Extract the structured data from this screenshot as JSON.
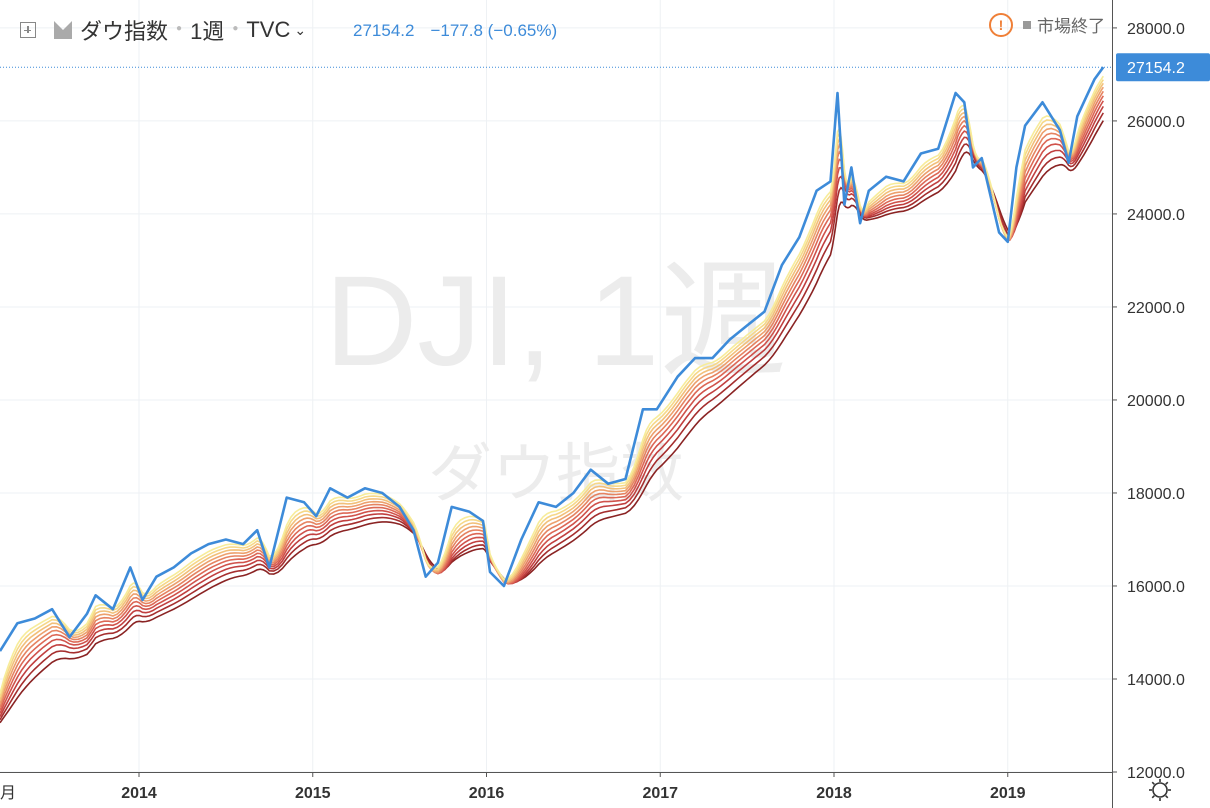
{
  "header": {
    "symbol_name": "ダウ指数",
    "interval": "1週",
    "exchange": "TVC",
    "last": "27154.2",
    "change": "−177.8",
    "change_pct": "(−0.65%)",
    "market_status": "市場終了",
    "warning_glyph": "!"
  },
  "watermark": {
    "main": "DJI, 1週",
    "sub": "ダウ指数"
  },
  "colors": {
    "price": "#3d8bd9",
    "ema_gradient": [
      "#f7ec9a",
      "#f6d888",
      "#f2c07a",
      "#eda06d",
      "#e68361",
      "#dd6856",
      "#d0524b",
      "#c13f3f",
      "#a52e2e",
      "#8a2323"
    ]
  },
  "chart_data": {
    "type": "line",
    "title": "ダウ指数",
    "x_axis": {
      "min": 2013.2,
      "max": 2019.6,
      "ticks": [
        "2014",
        "2015",
        "2016",
        "2017",
        "2018",
        "2019"
      ],
      "tick_values": [
        2014,
        2015,
        2016,
        2017,
        2018,
        2019
      ],
      "left_edge_label": "月"
    },
    "y_axis": {
      "min": 12000,
      "max": 28600,
      "side": "right",
      "ticks": [
        "12000.0",
        "14000.0",
        "16000.0",
        "18000.0",
        "20000.0",
        "22000.0",
        "24000.0",
        "26000.0",
        "28000.0"
      ],
      "tick_values": [
        12000,
        14000,
        16000,
        18000,
        20000,
        22000,
        24000,
        26000,
        28000
      ]
    },
    "last_price_label": "27154.2",
    "last_price_value": 27154.2,
    "grid": true,
    "series": [
      {
        "name": "ダウ指数",
        "x": [
          2013.2,
          2013.3,
          2013.4,
          2013.5,
          2013.6,
          2013.7,
          2013.75,
          2013.85,
          2013.95,
          2014.02,
          2014.1,
          2014.2,
          2014.3,
          2014.4,
          2014.5,
          2014.6,
          2014.68,
          2014.75,
          2014.85,
          2014.95,
          2015.02,
          2015.1,
          2015.2,
          2015.3,
          2015.4,
          2015.5,
          2015.58,
          2015.65,
          2015.72,
          2015.8,
          2015.9,
          2015.98,
          2016.02,
          2016.1,
          2016.2,
          2016.3,
          2016.4,
          2016.5,
          2016.6,
          2016.7,
          2016.8,
          2016.9,
          2016.98,
          2017.1,
          2017.2,
          2017.3,
          2017.4,
          2017.5,
          2017.6,
          2017.7,
          2017.8,
          2017.9,
          2017.98,
          2018.02,
          2018.06,
          2018.1,
          2018.15,
          2018.2,
          2018.3,
          2018.4,
          2018.5,
          2018.6,
          2018.7,
          2018.75,
          2018.8,
          2018.85,
          2018.9,
          2018.95,
          2019.0,
          2019.05,
          2019.1,
          2019.2,
          2019.3,
          2019.35,
          2019.4,
          2019.45,
          2019.5,
          2019.55
        ],
        "y": [
          14600,
          15200,
          15300,
          15500,
          14900,
          15400,
          15800,
          15500,
          16400,
          15700,
          16200,
          16400,
          16700,
          16900,
          17000,
          16900,
          17200,
          16400,
          17900,
          17800,
          17500,
          18100,
          17900,
          18100,
          18000,
          17700,
          17200,
          16200,
          16500,
          17700,
          17600,
          17400,
          16300,
          16000,
          17000,
          17800,
          17700,
          18000,
          18500,
          18200,
          18300,
          19800,
          19800,
          20500,
          20900,
          20900,
          21300,
          21600,
          21900,
          22900,
          23500,
          24500,
          24700,
          26600,
          24200,
          25000,
          23800,
          24500,
          24800,
          24700,
          25300,
          25400,
          26600,
          26400,
          25000,
          25200,
          24400,
          23600,
          23400,
          25000,
          25900,
          26400,
          25800,
          25100,
          26100,
          26500,
          26900,
          27154
        ]
      }
    ],
    "ema_band": {
      "count": 10,
      "note": ""
    }
  },
  "footer": {
    "settings_icon": "gear-icon"
  }
}
